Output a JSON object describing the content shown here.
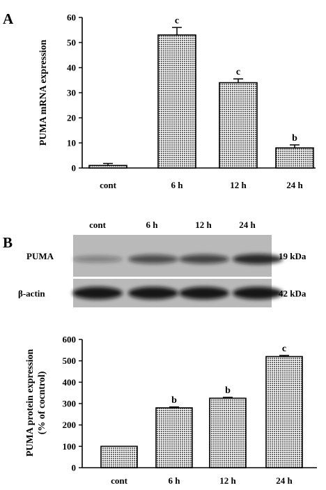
{
  "panels": {
    "a_label": "A",
    "b_label": "B"
  },
  "chart_data": [
    {
      "type": "bar",
      "categories": [
        "cont",
        "6 h",
        "12 h",
        "24 h"
      ],
      "values": [
        1,
        53,
        34,
        8
      ],
      "errors": [
        0.8,
        3,
        1.5,
        1.2
      ],
      "significance": [
        "",
        "c",
        "c",
        "b"
      ],
      "ylabel": "PUMA mRNA expression",
      "ylim": [
        0,
        60
      ],
      "yticks": [
        0,
        10,
        20,
        30,
        40,
        50,
        60
      ],
      "grid": false
    },
    {
      "type": "bar",
      "categories": [
        "cont",
        "6 h",
        "12 h",
        "24 h"
      ],
      "values": [
        100,
        280,
        325,
        520
      ],
      "errors": [
        0,
        4,
        4,
        5
      ],
      "significance": [
        "",
        "b",
        "b",
        "c"
      ],
      "ylabel": [
        "PUMA protein expression",
        "(% of cocntrol)"
      ],
      "ylim": [
        0,
        600
      ],
      "yticks": [
        0,
        100,
        200,
        300,
        400,
        500,
        600
      ],
      "grid": false
    }
  ],
  "blot": {
    "lane_labels": [
      "cont",
      "6 h",
      "12 h",
      "24 h"
    ],
    "rows": [
      {
        "name": "PUMA",
        "size": "19 kDa",
        "intensities": [
          0.35,
          0.65,
          0.7,
          0.85
        ]
      },
      {
        "name": "β-actin",
        "size": "42 kDa",
        "intensities": [
          0.95,
          0.95,
          0.95,
          0.95
        ]
      }
    ]
  },
  "colors": {
    "bar_fill": "#9a9a9a",
    "blot_bg": "#b9b9b9",
    "band": "#111111"
  }
}
